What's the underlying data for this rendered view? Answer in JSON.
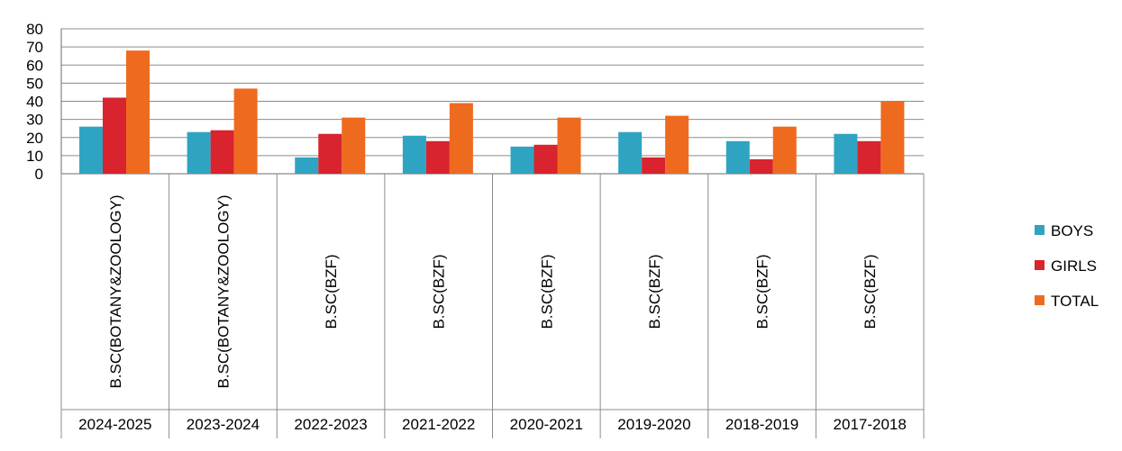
{
  "chart_data": {
    "type": "bar",
    "years": [
      "2024-2025",
      "2023-2024",
      "2022-2023",
      "2021-2022",
      "2020-2021",
      "2019-2020",
      "2018-2019",
      "2017-2018"
    ],
    "courses": [
      "B.SC(BOTANY&ZOOLOGY)",
      "B.SC(BOTANY&ZOOLOGY)",
      "B.SC(BZF)",
      "B.SC(BZF)",
      "B.SC(BZF)",
      "B.SC(BZF)",
      "B.SC(BZF)",
      "B.SC(BZF)"
    ],
    "series": [
      {
        "name": "BOYS",
        "color": "#2FA4C2",
        "values": [
          26,
          23,
          9,
          21,
          15,
          23,
          18,
          22
        ]
      },
      {
        "name": "GIRLS",
        "color": "#D9232E",
        "values": [
          42,
          24,
          22,
          18,
          16,
          9,
          8,
          18
        ]
      },
      {
        "name": "TOTAL",
        "color": "#EE6A1F",
        "values": [
          68,
          47,
          31,
          39,
          31,
          32,
          26,
          40
        ]
      }
    ],
    "ylim": [
      0,
      80
    ],
    "yticks": [
      0,
      10,
      20,
      30,
      40,
      50,
      60,
      70,
      80
    ],
    "grid": true,
    "legend_position": "right"
  }
}
